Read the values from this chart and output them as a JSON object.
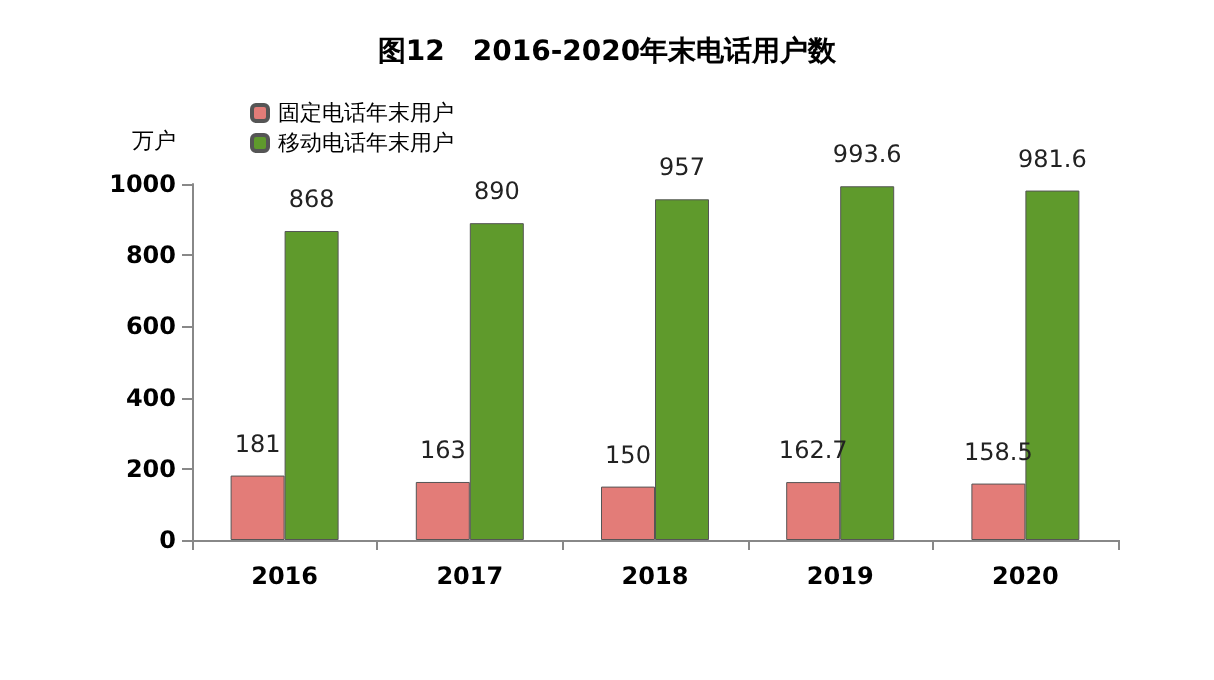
{
  "chart_data": {
    "type": "bar",
    "title": "图12　2016-2020年末电话用户数",
    "ylabel": "万户",
    "categories": [
      "2016",
      "2017",
      "2018",
      "2019",
      "2020"
    ],
    "series": [
      {
        "name": "固定电话年末用户",
        "color": "#e37c78",
        "values": [
          181,
          163,
          150,
          162.7,
          158.5
        ]
      },
      {
        "name": "移动电话年末用户",
        "color": "#5f9a2c",
        "values": [
          868,
          890,
          957,
          993.6,
          981.6
        ]
      }
    ],
    "ylim": [
      0,
      1000
    ],
    "yticks": [
      0,
      200,
      400,
      600,
      800,
      1000
    ],
    "grid": false,
    "legend": "top left",
    "data_labels": true
  }
}
